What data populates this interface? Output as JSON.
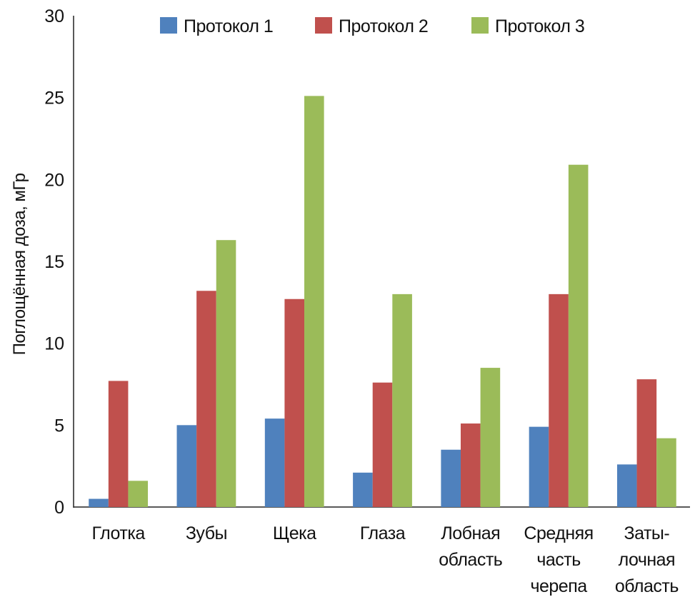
{
  "chart_data": {
    "type": "bar",
    "title": "",
    "xlabel": "",
    "ylabel": "Поглощённая доза, мГр",
    "ylim": [
      0,
      30
    ],
    "yticks": [
      0,
      5,
      10,
      15,
      20,
      25,
      30
    ],
    "grid": false,
    "legend_position": "top",
    "categories": [
      [
        "Глотка"
      ],
      [
        "Зубы"
      ],
      [
        "Щека"
      ],
      [
        "Глаза"
      ],
      [
        "Лобная",
        "область"
      ],
      [
        "Средняя",
        "часть",
        "черепа"
      ],
      [
        "Заты-",
        "лочная",
        "область"
      ]
    ],
    "series": [
      {
        "name": "Протокол 1",
        "color": "#4f81bd",
        "values": [
          0.5,
          5.0,
          5.4,
          2.1,
          3.5,
          4.9,
          2.6
        ]
      },
      {
        "name": "Протокол 2",
        "color": "#c0504d",
        "values": [
          7.7,
          13.2,
          12.7,
          7.6,
          5.1,
          13.0,
          7.8
        ]
      },
      {
        "name": "Протокол 3",
        "color": "#9bbb59",
        "values": [
          1.6,
          16.3,
          25.1,
          13.0,
          8.5,
          20.9,
          4.2
        ]
      }
    ]
  }
}
